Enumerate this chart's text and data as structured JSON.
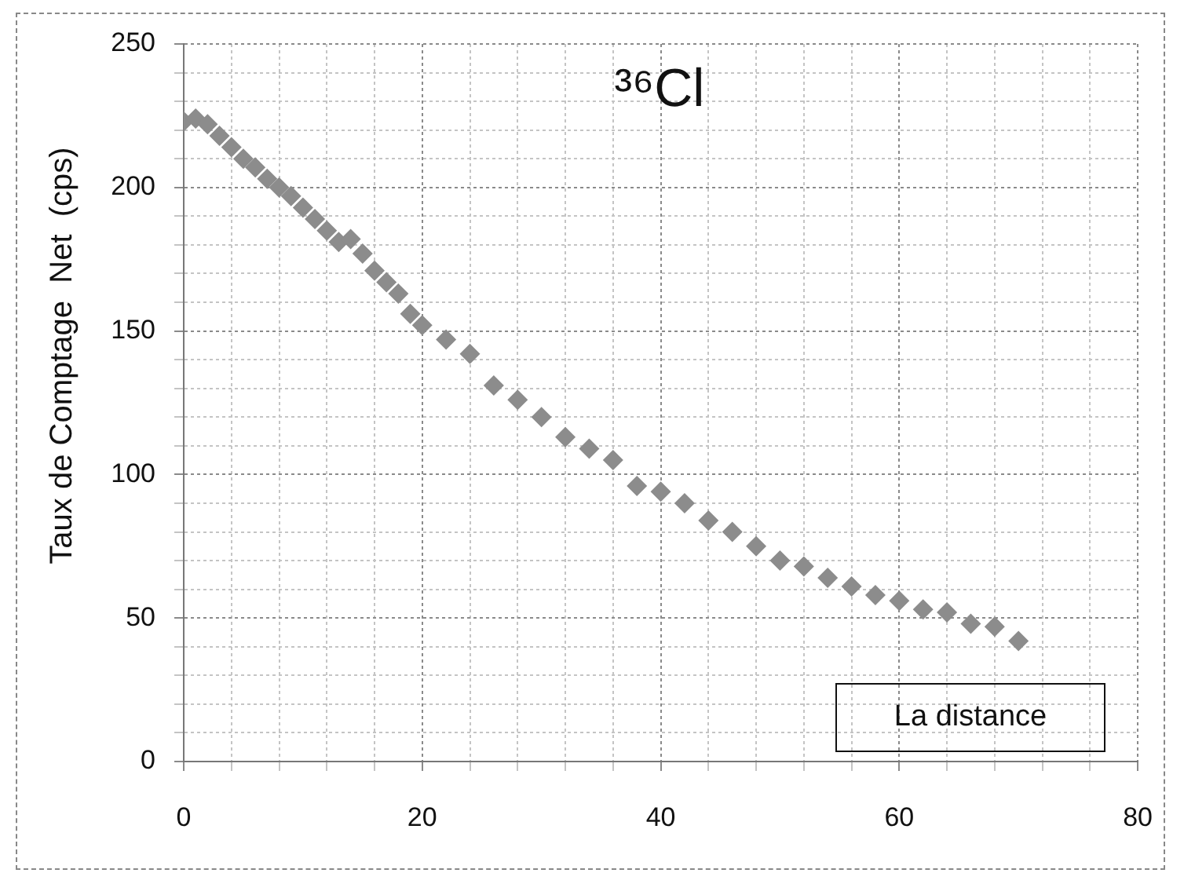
{
  "chart_data": {
    "type": "scatter",
    "title": "³⁶Cl",
    "xlabel": "La distance",
    "ylabel": "Taux de Comptage  Net  (cps)",
    "x": [
      0,
      1,
      2,
      3,
      4,
      5,
      6,
      7,
      8,
      9,
      10,
      11,
      12,
      13,
      14,
      15,
      16,
      17,
      18,
      19,
      20,
      22,
      24,
      26,
      28,
      30,
      32,
      34,
      36,
      38,
      40,
      42,
      44,
      46,
      48,
      50,
      52,
      54,
      56,
      58,
      60,
      62,
      64,
      66,
      68,
      70
    ],
    "series": [
      {
        "color": "#8c8c8c",
        "values": [
          223,
          224,
          222,
          218,
          214,
          210,
          207,
          203,
          200,
          197,
          193,
          189,
          185,
          181,
          182,
          177,
          171,
          167,
          163,
          156,
          152,
          147,
          142,
          131,
          126,
          120,
          113,
          109,
          105,
          96,
          94,
          90,
          84,
          80,
          75,
          70,
          68,
          64,
          61,
          58,
          56,
          53,
          52,
          48,
          47,
          42
        ]
      }
    ],
    "marker": "diamond",
    "grid": true,
    "legend": false,
    "xlim": [
      0,
      80
    ],
    "xticks": [
      0,
      {
        "value": 4,
        "label": null
      },
      {
        "value": 8,
        "label": null
      },
      {
        "value": 12,
        "label": null
      },
      {
        "value": 16,
        "label": null
      },
      20,
      {
        "value": 24,
        "label": null
      },
      {
        "value": 28,
        "label": null
      },
      {
        "value": 32,
        "label": null
      },
      {
        "value": 36,
        "label": null
      },
      40,
      {
        "value": 44,
        "label": null
      },
      {
        "value": 48,
        "label": null
      },
      {
        "value": 52,
        "label": null
      },
      {
        "value": 56,
        "label": null
      },
      60,
      {
        "value": 64,
        "label": null
      },
      {
        "value": 68,
        "label": null
      },
      {
        "value": 72,
        "label": null
      },
      {
        "value": 76,
        "label": null
      },
      80
    ],
    "ylim": [
      0,
      250
    ],
    "yticks": [
      0,
      {
        "value": 10,
        "label": null
      },
      {
        "value": 20,
        "label": null
      },
      {
        "value": 30,
        "label": null
      },
      {
        "value": 40,
        "label": null
      },
      50,
      {
        "value": 60,
        "label": null
      },
      {
        "value": 70,
        "label": null
      },
      {
        "value": 80,
        "label": null
      },
      {
        "value": 90,
        "label": null
      },
      100,
      {
        "value": 110,
        "label": null
      },
      {
        "value": 120,
        "label": null
      },
      {
        "value": 130,
        "label": null
      },
      {
        "value": 140,
        "label": null
      },
      150,
      {
        "value": 160,
        "label": null
      },
      {
        "value": 170,
        "label": null
      },
      {
        "value": 180,
        "label": null
      },
      {
        "value": 190,
        "label": null
      },
      200,
      {
        "value": 210,
        "label": null
      },
      {
        "value": 220,
        "label": null
      },
      {
        "value": 230,
        "label": null
      },
      {
        "value": 240,
        "label": null
      },
      250
    ]
  }
}
